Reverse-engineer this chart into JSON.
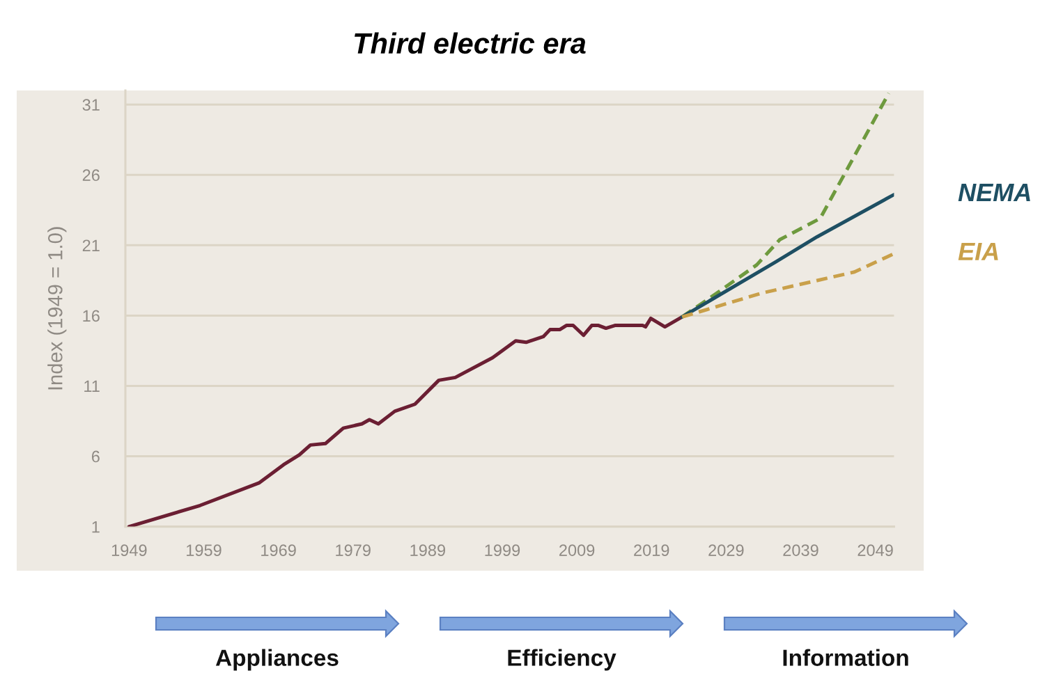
{
  "chart_data": {
    "type": "line",
    "title": "Third electric era",
    "ylabel": "Index (1949 = 1.0)",
    "xlim": [
      1948.5,
      2051.5
    ],
    "xticks": [
      1949,
      1959,
      1969,
      1979,
      1989,
      1999,
      2009,
      2019,
      2029,
      2039,
      2049
    ],
    "ylim": [
      1,
      32
    ],
    "yticks": [
      1,
      6,
      11,
      16,
      21,
      26,
      31
    ],
    "grid": "y",
    "series": [
      {
        "color": "#6b1f33",
        "line_style": "solid",
        "x": [
          1949,
          1958.5,
          1966.4,
          1969.7,
          1971.8,
          1973.3,
          1975.3,
          1977.7,
          1980.2,
          1981.2,
          1982.4,
          1984.6,
          1987.3,
          1990.5,
          1992.7,
          1997.7,
          2000.8,
          2002.2,
          2004.5,
          2005.4,
          2006.7,
          2007.6,
          2008.5,
          2009.9,
          2011.0,
          2011.9,
          2012.9,
          2014.1,
          2017.8,
          2018.2,
          2018.9,
          2020.8,
          2023.1
        ],
        "values": [
          1.0,
          2.5,
          4.1,
          5.4,
          6.1,
          6.8,
          6.9,
          8.0,
          8.3,
          8.6,
          8.3,
          9.2,
          9.7,
          11.4,
          11.6,
          13.0,
          14.2,
          14.1,
          14.5,
          15.0,
          15.0,
          15.3,
          15.3,
          14.6,
          15.3,
          15.3,
          15.1,
          15.3,
          15.3,
          15.2,
          15.8,
          15.2,
          15.9
        ]
      },
      {
        "color": "#6e9a3e",
        "line_style": "dashed",
        "x": [
          2023.1,
          2027.5,
          2033.1,
          2036.2,
          2041.6,
          2050.8
        ],
        "values": [
          15.9,
          17.5,
          19.6,
          21.4,
          22.9,
          31.8
        ]
      },
      {
        "name": "NEMA",
        "color": "#1e4f63",
        "line_style": "solid",
        "x": [
          2023.1,
          2035.6,
          2041.2,
          2051.5
        ],
        "values": [
          15.9,
          19.8,
          21.6,
          24.6
        ]
      },
      {
        "name": "EIA",
        "color": "#c9a04a",
        "line_style": "dashed",
        "x": [
          2023.1,
          2033.8,
          2046.2,
          2051.5
        ],
        "values": [
          15.9,
          17.6,
          19.1,
          20.4
        ]
      }
    ],
    "annotations": [
      "Appliances",
      "Efficiency",
      "Information"
    ]
  }
}
